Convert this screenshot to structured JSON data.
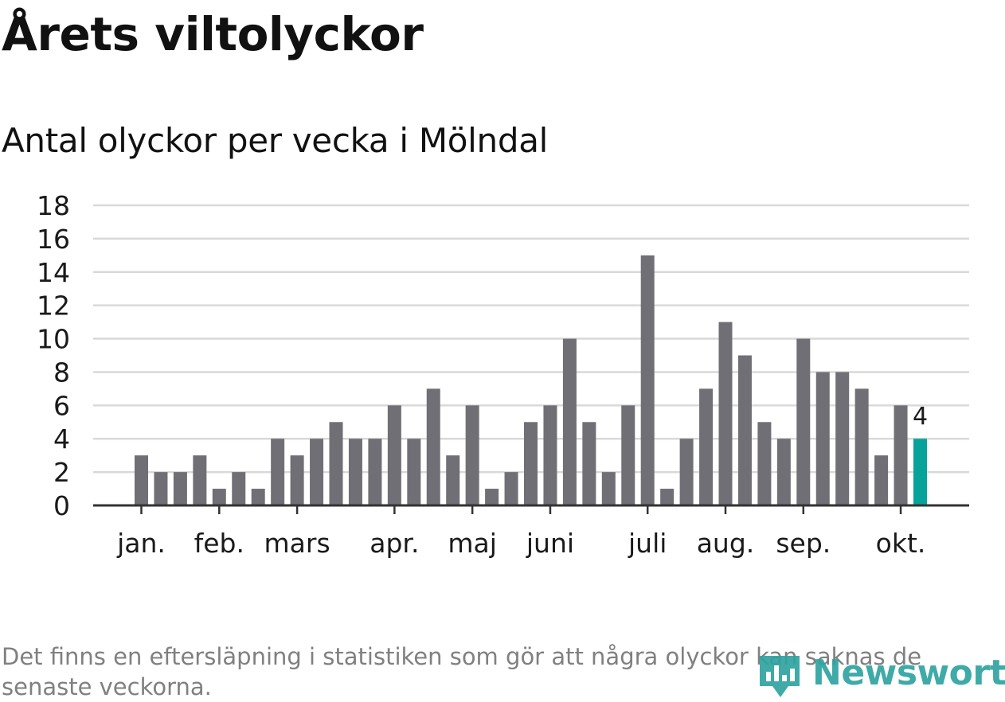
{
  "header": {
    "title": "Årets viltolyckor",
    "subtitle": "Antal olyckor per vecka i Mölndal"
  },
  "chart_data": {
    "type": "bar",
    "title": "Årets viltolyckor",
    "subtitle": "Antal olyckor per vecka i Mölndal",
    "xlabel": "",
    "ylabel": "",
    "ylim": [
      0,
      18
    ],
    "yticks": [
      0,
      2,
      4,
      6,
      8,
      10,
      12,
      14,
      16,
      18
    ],
    "grid": true,
    "values": [
      3,
      2,
      2,
      3,
      1,
      2,
      1,
      4,
      3,
      4,
      5,
      4,
      4,
      6,
      4,
      7,
      3,
      6,
      1,
      2,
      5,
      6,
      10,
      5,
      2,
      6,
      15,
      1,
      4,
      7,
      11,
      9,
      5,
      4,
      10,
      8,
      8,
      7,
      3,
      6,
      4
    ],
    "month_labels": [
      {
        "label": "jan.",
        "week": 0
      },
      {
        "label": "feb.",
        "week": 4
      },
      {
        "label": "mars",
        "week": 8
      },
      {
        "label": "apr.",
        "week": 13
      },
      {
        "label": "maj",
        "week": 17
      },
      {
        "label": "juni",
        "week": 21
      },
      {
        "label": "juli",
        "week": 26
      },
      {
        "label": "aug.",
        "week": 30
      },
      {
        "label": "sep.",
        "week": 34
      },
      {
        "label": "okt.",
        "week": 39
      }
    ],
    "highlight_index": 40,
    "highlight_label": "4",
    "colors": {
      "bar": "#706f75",
      "highlight": "#07a39a",
      "grid": "#d9d9d9",
      "axis": "#333333",
      "text": "#1a1a1a"
    }
  },
  "footnote": {
    "text": "Det finns en eftersläpning i statistiken som gör att några olyckor kan saknas de senaste veckorna."
  },
  "logo": {
    "text": "Newsworthy",
    "color": "#2fa3a0"
  }
}
